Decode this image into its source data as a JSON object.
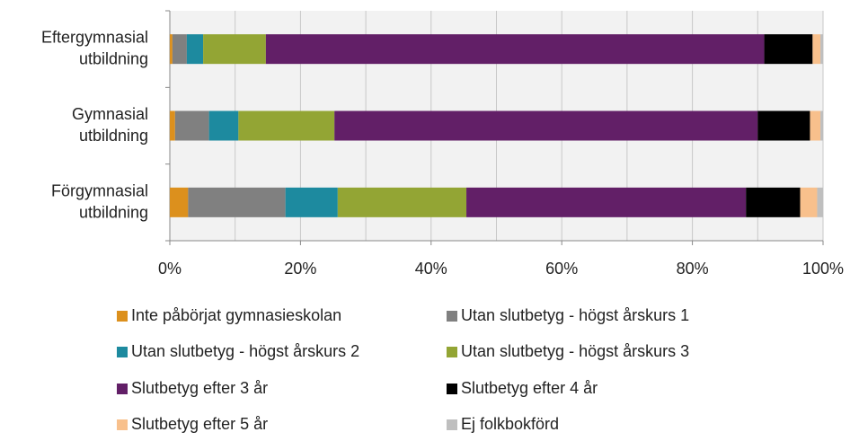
{
  "chart_data": {
    "type": "stacked_barh",
    "categories": [
      [
        "Eftergymnasial",
        "utbildning"
      ],
      [
        "Gymnasial",
        "utbildning"
      ],
      [
        "Förgymnasial",
        "utbildning"
      ]
    ],
    "series": [
      {
        "name": "Inte påbörjat gymnasieskolan",
        "color": "#dc901d",
        "values": [
          0.4,
          0.8,
          2.8
        ]
      },
      {
        "name": "Utan slutbetyg - högst årskurs 1",
        "color": "#808080",
        "values": [
          2.2,
          5.2,
          14.9
        ]
      },
      {
        "name": "Utan slutbetyg - högst årskurs 2",
        "color": "#1d8a9f",
        "values": [
          2.5,
          4.5,
          8.0
        ]
      },
      {
        "name": "Utan slutbetyg - högst årskurs 3",
        "color": "#93a534",
        "values": [
          9.6,
          14.7,
          19.7
        ]
      },
      {
        "name": "Slutbetyg efter 3 år",
        "color": "#621f67",
        "values": [
          76.3,
          64.8,
          42.8
        ]
      },
      {
        "name": "Slutbetyg efter 4 år",
        "color": "#000000",
        "values": [
          7.4,
          8.0,
          8.3
        ]
      },
      {
        "name": "Slutbetyg efter 5 år",
        "color": "#f8c08c",
        "values": [
          1.2,
          1.6,
          2.6
        ]
      },
      {
        "name": "Ej folkbokförd",
        "color": "#bfbfbf",
        "values": [
          0.4,
          0.4,
          0.9
        ]
      }
    ],
    "xlim": [
      0,
      100
    ],
    "xticks": [
      {
        "value": 0,
        "label": "0%"
      },
      {
        "value": 20,
        "label": "20%"
      },
      {
        "value": 40,
        "label": "40%"
      },
      {
        "value": 60,
        "label": "60%"
      },
      {
        "value": 80,
        "label": "80%"
      },
      {
        "value": 100,
        "label": "100%"
      }
    ],
    "minor_xticks": [
      10,
      30,
      50,
      70,
      90
    ],
    "grid": true,
    "legend": "bottom"
  }
}
